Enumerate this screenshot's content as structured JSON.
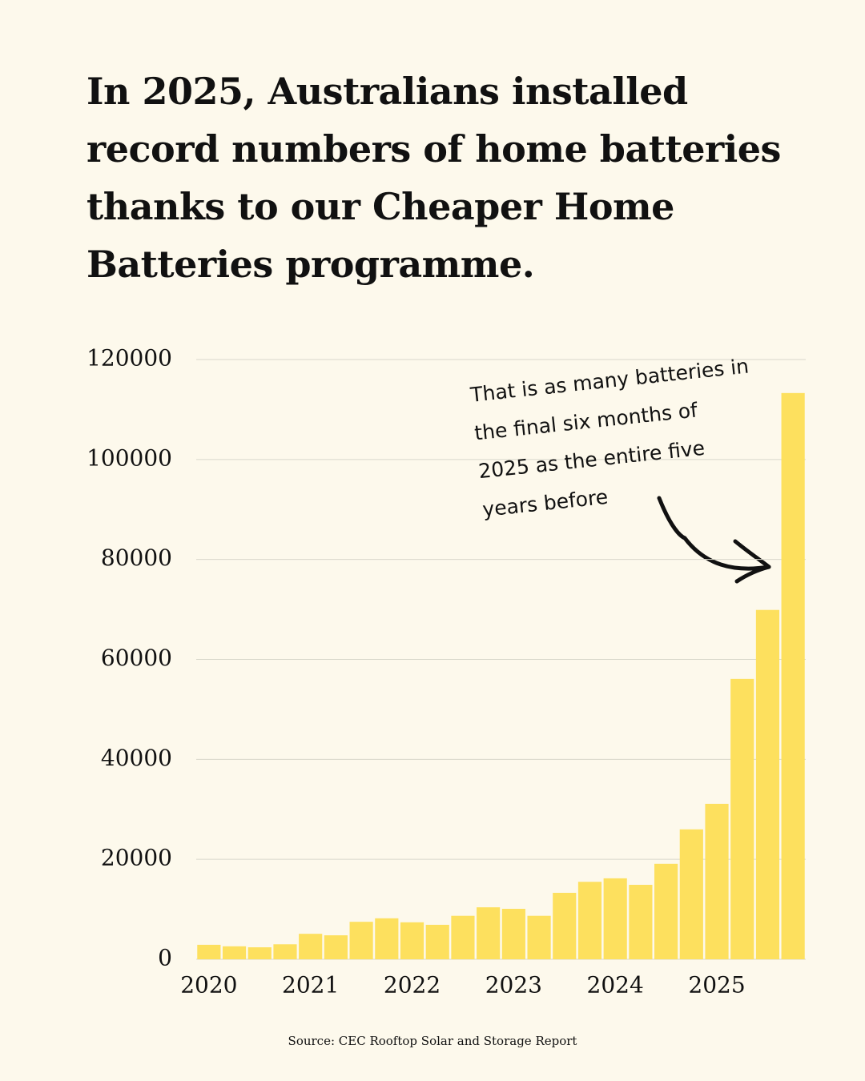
{
  "chart_data": {
    "type": "bar",
    "title": "In 2025, Australians installed record numbers of home batteries thanks to our Cheaper Home Batteries programme.",
    "annotation": "That is as many batteries in the final six months of 2025 as the entire five years before",
    "source": "Source: CEC Rooftop Solar and Storage Report",
    "categories": [
      "2020",
      null,
      null,
      null,
      "2021",
      null,
      null,
      null,
      "2022",
      null,
      null,
      null,
      "2023",
      null,
      null,
      null,
      "2024",
      null,
      null,
      null,
      "2025",
      null,
      null,
      null
    ],
    "values": [
      2900,
      2600,
      2400,
      3000,
      5100,
      4800,
      7500,
      8200,
      7400,
      6900,
      8700,
      10400,
      10100,
      8700,
      13300,
      15500,
      16200,
      14900,
      19100,
      26000,
      31100,
      56100,
      69900,
      113300
    ],
    "color": "#fde05e",
    "ylim": [
      0,
      120000
    ],
    "yticks": [
      0,
      20000,
      40000,
      60000,
      80000,
      100000,
      120000
    ],
    "grid": true
  }
}
